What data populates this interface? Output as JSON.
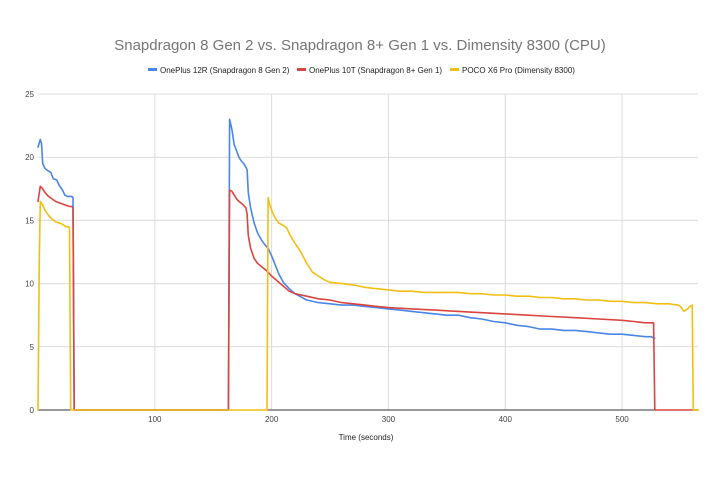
{
  "chart_data": {
    "type": "line",
    "title": "Snapdragon 8 Gen 2 vs. Snapdragon 8+ Gen 1 vs. Dimensity 8300 (CPU)",
    "xlabel": "Time (seconds)",
    "ylabel": "",
    "xlim": [
      0,
      565
    ],
    "ylim": [
      0,
      25
    ],
    "xticks": [
      100,
      200,
      300,
      400,
      500
    ],
    "yticks": [
      0,
      5,
      10,
      15,
      20,
      25
    ],
    "grid": true,
    "legend_position": "top",
    "series": [
      {
        "name": "OnePlus 12R (Snapdragon 8 Gen 2)",
        "color": "#4a86e8",
        "x": [
          0,
          2,
          3,
          4,
          6,
          9,
          11,
          13,
          16,
          18,
          21,
          23,
          25,
          27,
          29,
          30,
          31,
          60,
          100,
          150,
          162,
          163,
          164,
          166,
          168,
          170,
          172,
          174,
          176,
          178,
          179,
          180,
          182,
          185,
          188,
          191,
          194,
          197,
          200,
          203,
          206,
          210,
          215,
          220,
          230,
          240,
          250,
          260,
          270,
          280,
          290,
          300,
          310,
          320,
          330,
          340,
          350,
          360,
          370,
          380,
          390,
          400,
          410,
          420,
          430,
          440,
          450,
          460,
          470,
          480,
          490,
          500,
          510,
          520,
          525,
          527,
          528
        ],
        "values": [
          20.8,
          21.4,
          21.1,
          19.5,
          19.1,
          18.9,
          18.8,
          18.3,
          18.2,
          17.8,
          17.4,
          17.0,
          16.9,
          16.9,
          16.9,
          16.8,
          0,
          0,
          0,
          0,
          0,
          0,
          23.0,
          22.2,
          21.0,
          20.5,
          20.0,
          19.7,
          19.5,
          19.2,
          19.0,
          17.2,
          16.0,
          14.8,
          14.0,
          13.5,
          13.1,
          12.8,
          12.2,
          11.5,
          10.8,
          10.1,
          9.6,
          9.2,
          8.7,
          8.5,
          8.4,
          8.3,
          8.3,
          8.2,
          8.1,
          8.0,
          7.9,
          7.8,
          7.7,
          7.6,
          7.5,
          7.5,
          7.3,
          7.2,
          7.0,
          6.9,
          6.7,
          6.6,
          6.4,
          6.4,
          6.3,
          6.3,
          6.2,
          6.1,
          6.0,
          6.0,
          5.9,
          5.8,
          5.8,
          5.7,
          5.7
        ]
      },
      {
        "name": "OnePlus 10T (Snapdragon 8+ Gen 1)",
        "color": "#d9453f",
        "x": [
          0,
          2,
          4,
          6,
          9,
          12,
          15,
          18,
          21,
          24,
          27,
          29,
          30,
          31,
          60,
          100,
          150,
          162,
          163,
          164,
          166,
          168,
          170,
          172,
          175,
          178,
          179,
          180,
          182,
          185,
          188,
          192,
          196,
          200,
          205,
          210,
          215,
          220,
          230,
          240,
          250,
          260,
          270,
          280,
          290,
          300,
          320,
          340,
          360,
          380,
          400,
          420,
          440,
          460,
          480,
          500,
          510,
          520,
          525,
          527,
          528,
          565
        ],
        "values": [
          16.5,
          17.7,
          17.5,
          17.2,
          16.9,
          16.7,
          16.5,
          16.4,
          16.3,
          16.2,
          16.1,
          16.1,
          16.0,
          0,
          0,
          0,
          0,
          0,
          0,
          17.4,
          17.3,
          17.0,
          16.7,
          16.5,
          16.3,
          16.0,
          15.5,
          13.8,
          12.8,
          12.0,
          11.6,
          11.3,
          11.0,
          10.6,
          10.2,
          9.8,
          9.4,
          9.2,
          9.0,
          8.8,
          8.7,
          8.5,
          8.4,
          8.3,
          8.2,
          8.1,
          8.0,
          7.9,
          7.8,
          7.7,
          7.6,
          7.5,
          7.4,
          7.3,
          7.2,
          7.1,
          7.0,
          6.9,
          6.9,
          6.9,
          0,
          0
        ]
      },
      {
        "name": "POCO X6 Pro (Dimensity 8300)",
        "color": "#f1bf12",
        "x": [
          0,
          1,
          2,
          4,
          6,
          9,
          12,
          15,
          18,
          21,
          24,
          26,
          27,
          28,
          60,
          100,
          150,
          195,
          196,
          197,
          198,
          200,
          203,
          206,
          210,
          213,
          216,
          220,
          225,
          230,
          235,
          240,
          245,
          250,
          260,
          270,
          280,
          290,
          300,
          310,
          320,
          330,
          340,
          350,
          360,
          370,
          380,
          390,
          400,
          410,
          420,
          430,
          440,
          450,
          460,
          470,
          480,
          490,
          500,
          510,
          520,
          530,
          540,
          548,
          550,
          553,
          556,
          558,
          560,
          561,
          565
        ],
        "values": [
          0,
          11.5,
          16.5,
          16.2,
          15.8,
          15.4,
          15.1,
          14.9,
          14.8,
          14.7,
          14.5,
          14.5,
          14.4,
          0,
          0,
          0,
          0,
          0,
          0,
          16.8,
          16.4,
          15.8,
          15.2,
          14.8,
          14.6,
          14.4,
          13.8,
          13.2,
          12.5,
          11.6,
          10.9,
          10.6,
          10.3,
          10.1,
          10.0,
          9.9,
          9.7,
          9.6,
          9.5,
          9.4,
          9.4,
          9.3,
          9.3,
          9.3,
          9.3,
          9.2,
          9.2,
          9.1,
          9.1,
          9.0,
          9.0,
          8.9,
          8.9,
          8.8,
          8.8,
          8.7,
          8.7,
          8.6,
          8.6,
          8.5,
          8.5,
          8.4,
          8.4,
          8.3,
          8.2,
          7.8,
          8.0,
          8.2,
          8.3,
          0,
          0
        ]
      }
    ]
  }
}
